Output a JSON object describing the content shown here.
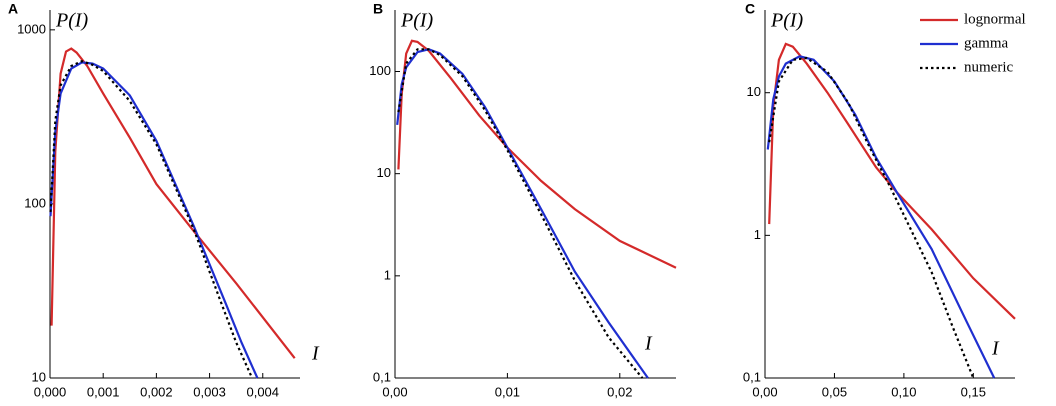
{
  "chart_data": [
    {
      "type": "line",
      "panel": "A",
      "y_label": "P(I)",
      "x_label": "I",
      "log_y": true,
      "xlim": [
        0,
        0.0047
      ],
      "ylim": [
        10,
        1300
      ],
      "xticks": [
        {
          "value": 0,
          "label": "0,000"
        },
        {
          "value": 0.001,
          "label": "0,001"
        },
        {
          "value": 0.002,
          "label": "0,002"
        },
        {
          "value": 0.003,
          "label": "0,003"
        },
        {
          "value": 0.004,
          "label": "0,004"
        }
      ],
      "yticks": [
        10,
        100,
        1000
      ],
      "series": [
        {
          "name": "lognormal",
          "color": "#d42a2a",
          "x": [
            3e-05,
            0.0001,
            0.0002,
            0.0003,
            0.0004,
            0.0005,
            0.0007,
            0.001,
            0.0015,
            0.002,
            0.0027,
            0.0035,
            0.0046
          ],
          "values": [
            20,
            200,
            560,
            750,
            780,
            740,
            620,
            430,
            240,
            130,
            70,
            35,
            13
          ]
        },
        {
          "name": "gamma",
          "color": "#1f2fd0",
          "x": [
            1e-05,
            0.0001,
            0.0002,
            0.0004,
            0.0006,
            0.0008,
            0.001,
            0.0015,
            0.002,
            0.0027,
            0.0033,
            0.0036,
            0.0039
          ],
          "values": [
            85,
            260,
            430,
            600,
            650,
            640,
            600,
            420,
            230,
            75,
            27,
            16,
            10
          ]
        },
        {
          "name": "numeric",
          "color": "#000000",
          "x": [
            1e-05,
            0.0001,
            0.0002,
            0.0004,
            0.0006,
            0.0008,
            0.001,
            0.0015,
            0.002,
            0.0027,
            0.0032,
            0.0035,
            0.0038
          ],
          "values": [
            90,
            300,
            480,
            620,
            660,
            630,
            580,
            390,
            220,
            72,
            28,
            16,
            10
          ]
        }
      ]
    },
    {
      "type": "line",
      "panel": "B",
      "y_label": "P(I)",
      "x_label": "I",
      "log_y": true,
      "xlim": [
        0,
        0.025
      ],
      "ylim": [
        0.1,
        400
      ],
      "xticks": [
        {
          "value": 0,
          "label": "0,00"
        },
        {
          "value": 0.01,
          "label": "0,01"
        },
        {
          "value": 0.02,
          "label": "0,02"
        }
      ],
      "yticks": [
        {
          "value": 0.1,
          "label": "0,1"
        },
        1,
        10,
        100
      ],
      "series": [
        {
          "name": "lognormal",
          "color": "#d42a2a",
          "x": [
            0.0003,
            0.0006,
            0.001,
            0.0015,
            0.002,
            0.003,
            0.005,
            0.0075,
            0.01,
            0.013,
            0.016,
            0.02,
            0.025
          ],
          "values": [
            11,
            60,
            150,
            200,
            195,
            160,
            85,
            37,
            18,
            8.5,
            4.5,
            2.2,
            1.2
          ]
        },
        {
          "name": "gamma",
          "color": "#1f2fd0",
          "x": [
            0.0002,
            0.0006,
            0.001,
            0.002,
            0.003,
            0.004,
            0.006,
            0.008,
            0.01,
            0.013,
            0.016,
            0.019,
            0.0225
          ],
          "values": [
            30,
            75,
            110,
            155,
            165,
            150,
            95,
            45,
            18,
            4.5,
            1.1,
            0.35,
            0.1
          ]
        },
        {
          "name": "numeric",
          "color": "#000000",
          "x": [
            0.0003,
            0.001,
            0.002,
            0.003,
            0.004,
            0.006,
            0.008,
            0.01,
            0.013,
            0.016,
            0.019,
            0.022
          ],
          "values": [
            40,
            120,
            165,
            165,
            145,
            90,
            42,
            17,
            4,
            0.9,
            0.25,
            0.1
          ]
        }
      ]
    },
    {
      "type": "line",
      "panel": "C",
      "y_label": "P(I)",
      "x_label": "I",
      "log_y": true,
      "legend": "upper right",
      "xlim": [
        0,
        0.18
      ],
      "ylim": [
        0.1,
        38
      ],
      "xticks": [
        {
          "value": 0,
          "label": "0,00"
        },
        {
          "value": 0.05,
          "label": "0,05"
        },
        {
          "value": 0.1,
          "label": "0,10"
        },
        {
          "value": 0.15,
          "label": "0,15"
        }
      ],
      "yticks": [
        {
          "value": 0.1,
          "label": "0,1"
        },
        1,
        10
      ],
      "series": [
        {
          "name": "lognormal",
          "color": "#d42a2a",
          "x": [
            0.003,
            0.006,
            0.01,
            0.015,
            0.02,
            0.03,
            0.045,
            0.06,
            0.08,
            0.095,
            0.12,
            0.15,
            0.18
          ],
          "values": [
            1.2,
            8,
            17,
            22,
            21,
            16,
            10,
            6,
            3,
            2,
            1.1,
            0.5,
            0.26
          ]
        },
        {
          "name": "gamma",
          "color": "#1f2fd0",
          "x": [
            0.002,
            0.006,
            0.01,
            0.015,
            0.025,
            0.035,
            0.05,
            0.065,
            0.08,
            0.095,
            0.12,
            0.145,
            0.165
          ],
          "values": [
            4,
            9,
            13,
            16,
            18,
            17,
            12,
            7,
            3.5,
            2,
            0.8,
            0.25,
            0.1
          ]
        },
        {
          "name": "numeric",
          "color": "#000000",
          "x": [
            0.003,
            0.01,
            0.02,
            0.03,
            0.045,
            0.06,
            0.075,
            0.09,
            0.105,
            0.12,
            0.135,
            0.15
          ],
          "values": [
            4.5,
            12,
            17,
            17.5,
            14,
            8.5,
            4.2,
            2.2,
            1.1,
            0.55,
            0.23,
            0.1
          ]
        }
      ]
    }
  ]
}
